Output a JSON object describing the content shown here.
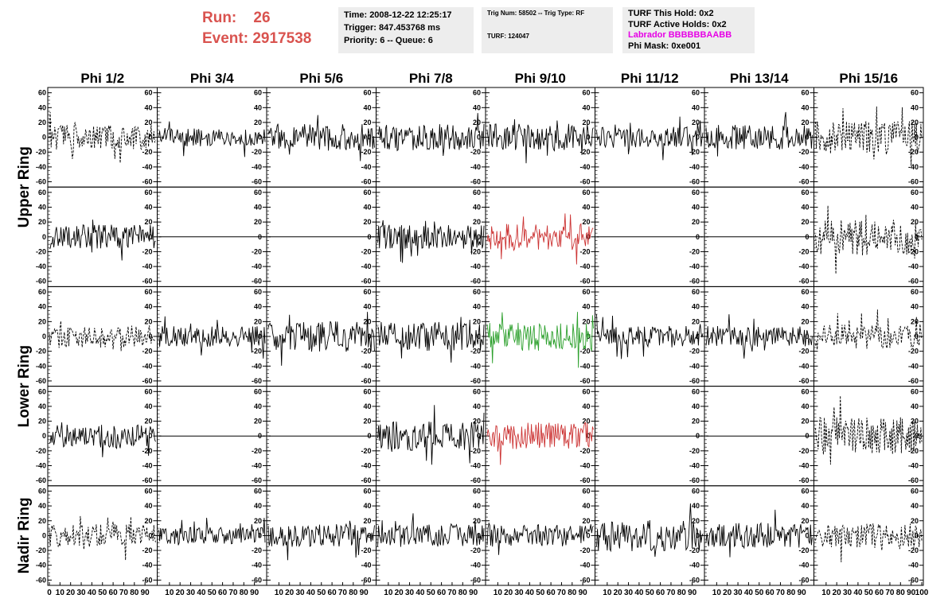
{
  "header": {
    "run_label": "Run:",
    "run_value": "26",
    "event_label": "Event:",
    "event_value": "2917538",
    "time": "Time: 2008-12-22 12:25:17",
    "trigger": "Trigger: 847.453768 ms",
    "priority": "Priority: 6 -- Queue: 6",
    "trig_num": "Trig Num: 58502 -- Trig Type: RF",
    "turf": "TURF: 124047",
    "turf_hold": "TURF This Hold: 0x2",
    "turf_active": "TURF Active Holds: 0x2",
    "labrador": "Labrador BBBBBBAABB",
    "phi_mask": "Phi Mask: 0xe001"
  },
  "chart_data": {
    "type": "line",
    "columns": [
      "Phi 1/2",
      "Phi 3/4",
      "Phi 5/6",
      "Phi 7/8",
      "Phi 9/10",
      "Phi 11/12",
      "Phi 13/14",
      "Phi 15/16"
    ],
    "row_labels": [
      "Upper Ring",
      "Lower Ring",
      "Nadir Ring"
    ],
    "rows": 5,
    "ylim": [
      -65,
      65
    ],
    "yticks": [
      -60,
      -40,
      -20,
      0,
      20,
      40,
      60
    ],
    "xlim": [
      0,
      100
    ],
    "xticks_first": [
      "0",
      "10",
      "20",
      "30",
      "40",
      "50",
      "60",
      "70",
      "80",
      "90"
    ],
    "xticks": [
      "10",
      "20",
      "30",
      "40",
      "50",
      "60",
      "70",
      "80",
      "90"
    ],
    "xticks_last": [
      "10",
      "20",
      "30",
      "40",
      "50",
      "60",
      "70",
      "80",
      "90",
      "100"
    ],
    "colors": {
      "black": "#000000",
      "red": "#cc3333",
      "green": "#2ca02c",
      "title": "#d9534f"
    },
    "panels": [
      {
        "row": 0,
        "col": 0,
        "style": "dashed",
        "color": "black",
        "amp": 12,
        "seed": 1
      },
      {
        "row": 0,
        "col": 1,
        "style": "solid",
        "color": "black",
        "amp": 9,
        "seed": 2
      },
      {
        "row": 0,
        "col": 2,
        "style": "solid",
        "color": "black",
        "amp": 13,
        "seed": 3
      },
      {
        "row": 0,
        "col": 3,
        "style": "solid",
        "color": "black",
        "amp": 13,
        "seed": 4
      },
      {
        "row": 0,
        "col": 4,
        "style": "solid",
        "color": "black",
        "amp": 13,
        "seed": 5
      },
      {
        "row": 0,
        "col": 5,
        "style": "solid",
        "color": "black",
        "amp": 10,
        "seed": 6
      },
      {
        "row": 0,
        "col": 6,
        "style": "solid",
        "color": "black",
        "amp": 12,
        "seed": 7
      },
      {
        "row": 0,
        "col": 7,
        "style": "dashed",
        "color": "black",
        "amp": 16,
        "seed": 8
      },
      {
        "row": 1,
        "col": 0,
        "style": "solid",
        "color": "black",
        "amp": 12,
        "seed": 9
      },
      {
        "row": 1,
        "col": 1,
        "style": "flat",
        "color": "black",
        "amp": 0,
        "seed": 10
      },
      {
        "row": 1,
        "col": 2,
        "style": "flat",
        "color": "black",
        "amp": 0,
        "seed": 11
      },
      {
        "row": 1,
        "col": 3,
        "style": "solid",
        "color": "black",
        "amp": 12,
        "seed": 12
      },
      {
        "row": 1,
        "col": 4,
        "style": "solid",
        "color": "red",
        "amp": 13,
        "seed": 13
      },
      {
        "row": 1,
        "col": 5,
        "style": "flat",
        "color": "black",
        "amp": 0,
        "seed": 14
      },
      {
        "row": 1,
        "col": 6,
        "style": "flat",
        "color": "black",
        "amp": 0,
        "seed": 15
      },
      {
        "row": 1,
        "col": 7,
        "style": "dashed",
        "color": "black",
        "amp": 18,
        "seed": 16
      },
      {
        "row": 2,
        "col": 0,
        "style": "dashed",
        "color": "black",
        "amp": 11,
        "seed": 17
      },
      {
        "row": 2,
        "col": 1,
        "style": "solid",
        "color": "black",
        "amp": 10,
        "seed": 18
      },
      {
        "row": 2,
        "col": 2,
        "style": "solid",
        "color": "black",
        "amp": 15,
        "seed": 19
      },
      {
        "row": 2,
        "col": 3,
        "style": "solid",
        "color": "black",
        "amp": 14,
        "seed": 20
      },
      {
        "row": 2,
        "col": 4,
        "style": "solid",
        "color": "green",
        "amp": 14,
        "seed": 21
      },
      {
        "row": 2,
        "col": 5,
        "style": "solid",
        "color": "black",
        "amp": 10,
        "seed": 22
      },
      {
        "row": 2,
        "col": 6,
        "style": "solid",
        "color": "black",
        "amp": 10,
        "seed": 23
      },
      {
        "row": 2,
        "col": 7,
        "style": "dashed",
        "color": "black",
        "amp": 12,
        "seed": 24
      },
      {
        "row": 3,
        "col": 0,
        "style": "solid",
        "color": "black",
        "amp": 11,
        "seed": 25
      },
      {
        "row": 3,
        "col": 1,
        "style": "flat",
        "color": "black",
        "amp": 0,
        "seed": 26
      },
      {
        "row": 3,
        "col": 2,
        "style": "flat",
        "color": "black",
        "amp": 0,
        "seed": 27
      },
      {
        "row": 3,
        "col": 3,
        "style": "solid",
        "color": "black",
        "amp": 14,
        "seed": 28
      },
      {
        "row": 3,
        "col": 4,
        "style": "solid",
        "color": "red",
        "amp": 13,
        "seed": 29
      },
      {
        "row": 3,
        "col": 5,
        "style": "flat",
        "color": "black",
        "amp": 0,
        "seed": 30
      },
      {
        "row": 3,
        "col": 6,
        "style": "flat",
        "color": "black",
        "amp": 0,
        "seed": 31
      },
      {
        "row": 3,
        "col": 7,
        "style": "dashed",
        "color": "black",
        "amp": 18,
        "seed": 32
      },
      {
        "row": 4,
        "col": 0,
        "style": "dashed",
        "color": "black",
        "amp": 11,
        "seed": 33
      },
      {
        "row": 4,
        "col": 1,
        "style": "solid",
        "color": "black",
        "amp": 8,
        "seed": 34
      },
      {
        "row": 4,
        "col": 2,
        "style": "solid",
        "color": "black",
        "amp": 11,
        "seed": 35
      },
      {
        "row": 4,
        "col": 3,
        "style": "solid",
        "color": "black",
        "amp": 11,
        "seed": 36
      },
      {
        "row": 4,
        "col": 4,
        "style": "solid",
        "color": "black",
        "amp": 11,
        "seed": 37
      },
      {
        "row": 4,
        "col": 5,
        "style": "solid",
        "color": "black",
        "amp": 15,
        "seed": 38
      },
      {
        "row": 4,
        "col": 6,
        "style": "solid",
        "color": "black",
        "amp": 12,
        "seed": 39
      },
      {
        "row": 4,
        "col": 7,
        "style": "dashed",
        "color": "black",
        "amp": 12,
        "seed": 40
      }
    ]
  }
}
